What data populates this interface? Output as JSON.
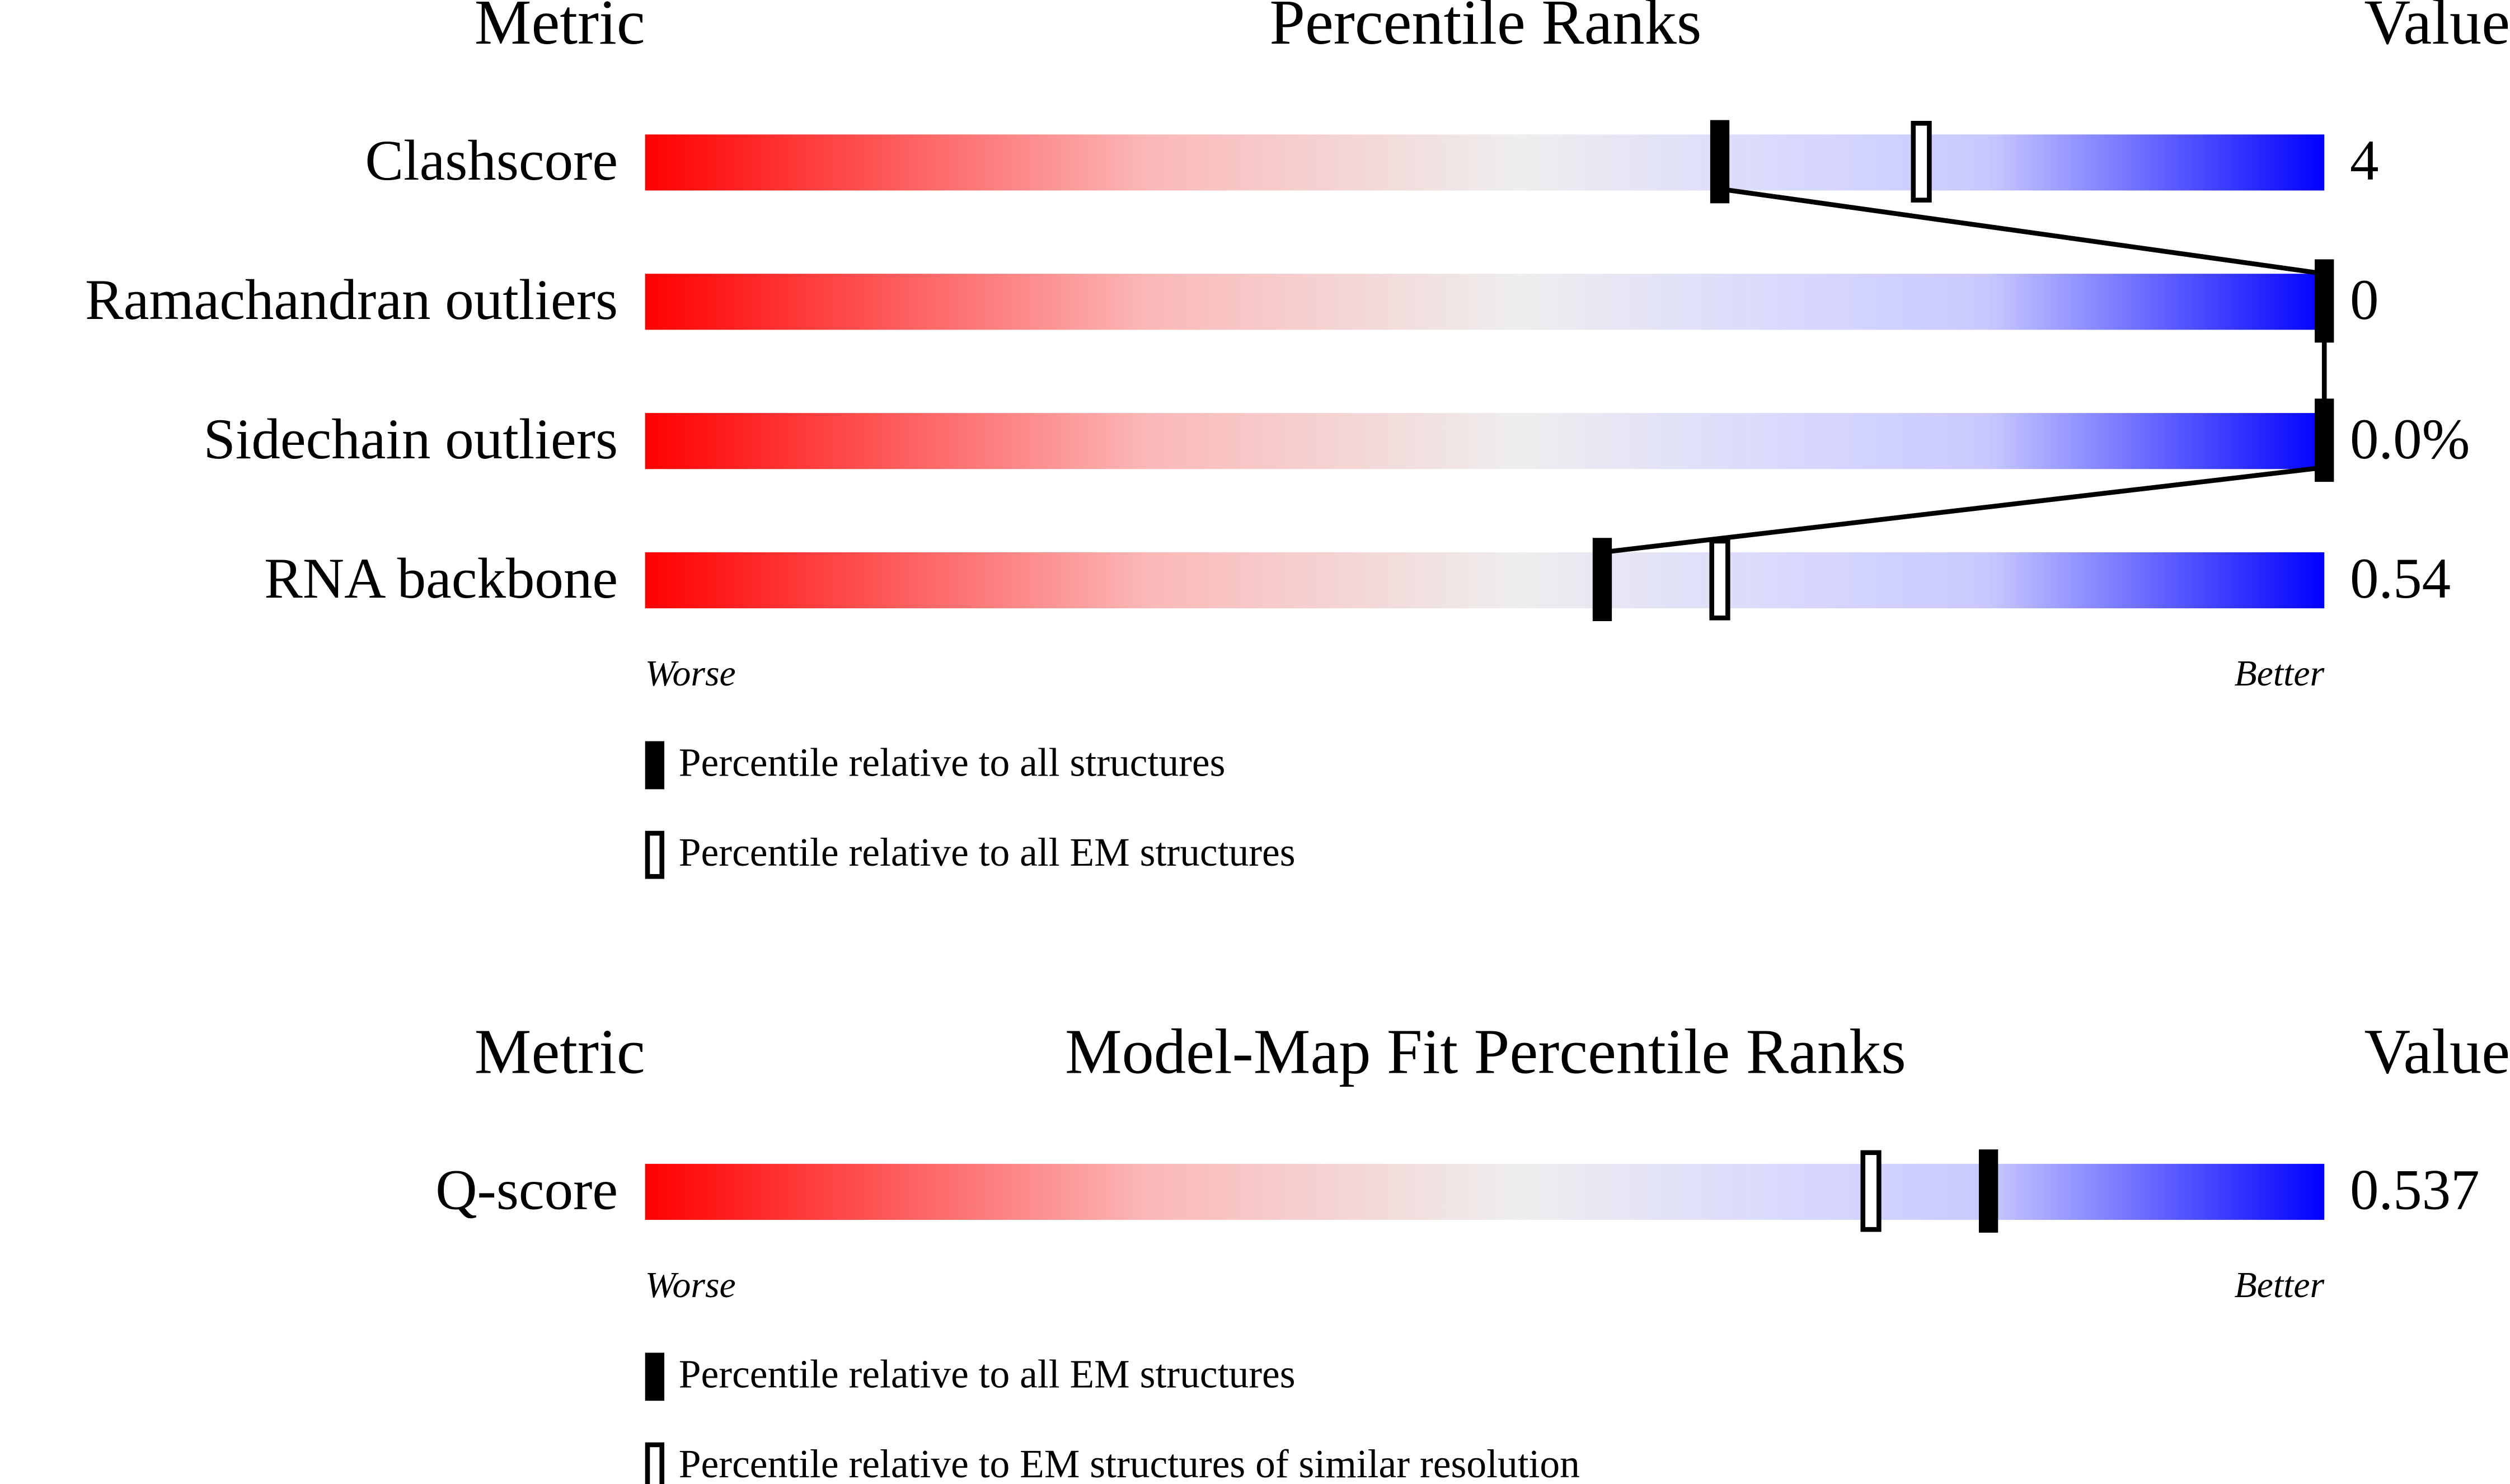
{
  "chart_data": [
    {
      "type": "percentile",
      "header": {
        "metric": "Metric",
        "title": "Percentile Ranks",
        "value": "Value"
      },
      "xlim": [
        0,
        100
      ],
      "connect": true,
      "rows": [
        {
          "label": "Clashscore",
          "value": "4",
          "percentile": 64,
          "percentile_relative": 76
        },
        {
          "label": "Ramachandran outliers",
          "value": "0",
          "percentile": 100,
          "percentile_relative": null
        },
        {
          "label": "Sidechain outliers",
          "value": "0.0%",
          "percentile": 100,
          "percentile_relative": null
        },
        {
          "label": "RNA backbone",
          "value": "0.54",
          "percentile": 57,
          "percentile_relative": 64
        }
      ],
      "worse": "Worse",
      "better": "Better",
      "legend": [
        {
          "name": "Percentile relative to all structures",
          "marker": "filled"
        },
        {
          "name": "Percentile relative to all EM structures",
          "marker": "open"
        }
      ]
    },
    {
      "type": "percentile",
      "header": {
        "metric": "Metric",
        "title": "Model-Map Fit Percentile Ranks",
        "value": "Value"
      },
      "xlim": [
        0,
        100
      ],
      "connect": true,
      "rows": [
        {
          "label": "Q-score",
          "value": "0.537",
          "percentile": 80,
          "percentile_relative": 73
        }
      ],
      "worse": "Worse",
      "better": "Better",
      "legend": [
        {
          "name": "Percentile relative to all EM structures",
          "marker": "filled"
        },
        {
          "name": "Percentile relative to EM structures of similar resolution",
          "marker": "open"
        }
      ]
    }
  ]
}
